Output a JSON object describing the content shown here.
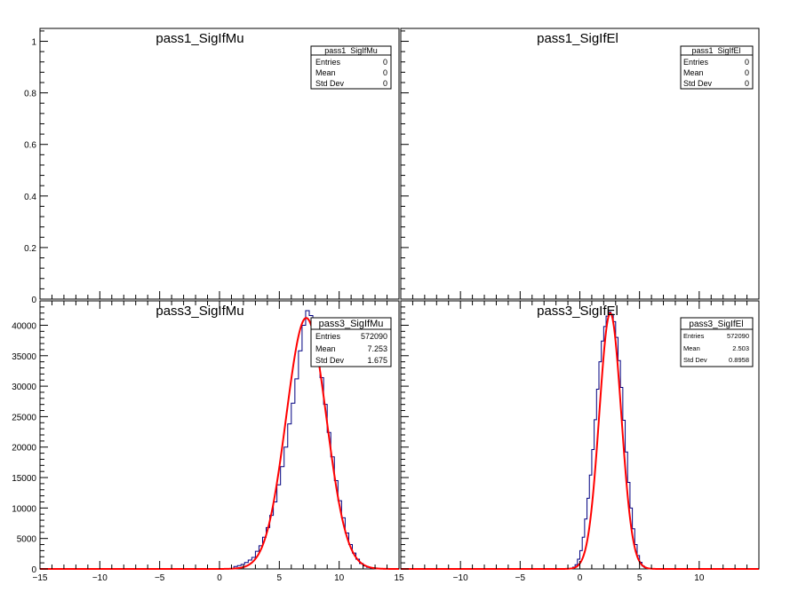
{
  "chart_data": [
    {
      "type": "bar",
      "title": "pass1_SigIfMu",
      "xlim": [
        -15,
        15
      ],
      "ylim": [
        0,
        1.05
      ],
      "y_ticks": [
        0,
        0.2,
        0.4,
        0.6,
        0.8,
        1
      ],
      "y_tick_labels": [
        "0",
        "0.2",
        "0.4",
        "0.6",
        "0.8",
        "1"
      ],
      "x_tick_labels": [],
      "bins": [],
      "fit": null,
      "stats": {
        "name": "pass1_SigIfMu",
        "rows": [
          {
            "label": "Entries",
            "value": "0"
          },
          {
            "label": "Mean",
            "value": "0"
          },
          {
            "label": "Std Dev",
            "value": "0"
          }
        ]
      },
      "colors": {
        "hist": "#000080",
        "fit": "#ff0000"
      }
    },
    {
      "type": "bar",
      "title": "pass1_SigIfEl",
      "xlim": [
        -15,
        15
      ],
      "ylim": [
        0,
        1.05
      ],
      "y_ticks": [],
      "y_tick_labels": [],
      "x_tick_labels": [],
      "bins": [],
      "fit": null,
      "stats": {
        "name": "pass1_SigIfEl",
        "rows": [
          {
            "label": "Entries",
            "value": "0"
          },
          {
            "label": "Mean",
            "value": "0"
          },
          {
            "label": "Std Dev",
            "value": "0"
          }
        ]
      },
      "colors": {
        "hist": "#000080",
        "fit": "#ff0000"
      }
    },
    {
      "type": "bar",
      "title": "pass3_SigIfMu",
      "xlim": [
        -15,
        15
      ],
      "ylim": [
        0,
        44000
      ],
      "y_ticks": [
        0,
        5000,
        10000,
        15000,
        20000,
        25000,
        30000,
        35000,
        40000
      ],
      "y_tick_labels": [
        "0",
        "5000",
        "10000",
        "15000",
        "20000",
        "25000",
        "30000",
        "35000",
        "40000"
      ],
      "x_ticks": [
        -15,
        -10,
        -5,
        0,
        5,
        10,
        15
      ],
      "x_tick_labels": [
        "−15",
        "−10",
        "−5",
        "0",
        "5",
        "10",
        "15"
      ],
      "bin_width": 0.3,
      "bins": [
        {
          "x": 1.35,
          "y": 400
        },
        {
          "x": 1.65,
          "y": 550
        },
        {
          "x": 1.95,
          "y": 750
        },
        {
          "x": 2.25,
          "y": 1050
        },
        {
          "x": 2.55,
          "y": 1450
        },
        {
          "x": 2.85,
          "y": 1900
        },
        {
          "x": 3.15,
          "y": 2900
        },
        {
          "x": 3.45,
          "y": 3800
        },
        {
          "x": 3.75,
          "y": 5200
        },
        {
          "x": 4.05,
          "y": 6800
        },
        {
          "x": 4.35,
          "y": 8800
        },
        {
          "x": 4.65,
          "y": 11000
        },
        {
          "x": 4.95,
          "y": 13800
        },
        {
          "x": 5.25,
          "y": 16800
        },
        {
          "x": 5.55,
          "y": 20000
        },
        {
          "x": 5.85,
          "y": 23800
        },
        {
          "x": 6.15,
          "y": 27200
        },
        {
          "x": 6.45,
          "y": 31200
        },
        {
          "x": 6.75,
          "y": 35800
        },
        {
          "x": 7.05,
          "y": 40000
        },
        {
          "x": 7.35,
          "y": 42400
        },
        {
          "x": 7.65,
          "y": 41600
        },
        {
          "x": 7.95,
          "y": 38200
        },
        {
          "x": 8.25,
          "y": 35200
        },
        {
          "x": 8.55,
          "y": 31400
        },
        {
          "x": 8.85,
          "y": 27000
        },
        {
          "x": 9.15,
          "y": 22400
        },
        {
          "x": 9.45,
          "y": 18400
        },
        {
          "x": 9.75,
          "y": 14500
        },
        {
          "x": 10.05,
          "y": 11200
        },
        {
          "x": 10.35,
          "y": 8400
        },
        {
          "x": 10.65,
          "y": 5900
        },
        {
          "x": 10.95,
          "y": 4000
        },
        {
          "x": 11.25,
          "y": 2600
        },
        {
          "x": 11.55,
          "y": 1600
        },
        {
          "x": 11.85,
          "y": 900
        },
        {
          "x": 12.15,
          "y": 500
        },
        {
          "x": 12.45,
          "y": 250
        }
      ],
      "fit": {
        "type": "gaussian",
        "amplitude": 41200,
        "mean": 7.25,
        "sigma": 1.675,
        "range": [
          -15,
          15
        ]
      },
      "stats": {
        "name": "pass3_SigIfMu",
        "rows": [
          {
            "label": "Entries",
            "value": "572090"
          },
          {
            "label": "Mean",
            "value": "7.253"
          },
          {
            "label": "Std Dev",
            "value": "1.675"
          }
        ]
      },
      "colors": {
        "hist": "#000080",
        "fit": "#ff0000"
      }
    },
    {
      "type": "bar",
      "title": "pass3_SigIfEl",
      "xlim": [
        -15,
        15
      ],
      "ylim": [
        0,
        44000
      ],
      "y_ticks": [],
      "y_tick_labels": [],
      "x_ticks": [
        -10,
        -5,
        0,
        5,
        10
      ],
      "x_tick_labels": [
        "−10",
        "−5",
        "0",
        "5",
        "10"
      ],
      "bin_width": 0.2,
      "bins": [
        {
          "x": -0.5,
          "y": 300
        },
        {
          "x": -0.3,
          "y": 700
        },
        {
          "x": -0.1,
          "y": 1600
        },
        {
          "x": 0.1,
          "y": 3000
        },
        {
          "x": 0.3,
          "y": 5200
        },
        {
          "x": 0.5,
          "y": 8200
        },
        {
          "x": 0.7,
          "y": 11600
        },
        {
          "x": 0.9,
          "y": 15400
        },
        {
          "x": 1.1,
          "y": 19600
        },
        {
          "x": 1.3,
          "y": 24500
        },
        {
          "x": 1.5,
          "y": 29500
        },
        {
          "x": 1.7,
          "y": 34000
        },
        {
          "x": 1.9,
          "y": 37400
        },
        {
          "x": 2.1,
          "y": 39800
        },
        {
          "x": 2.3,
          "y": 41500
        },
        {
          "x": 2.5,
          "y": 42200
        },
        {
          "x": 2.7,
          "y": 41800
        },
        {
          "x": 2.9,
          "y": 40600
        },
        {
          "x": 3.1,
          "y": 38000
        },
        {
          "x": 3.3,
          "y": 34200
        },
        {
          "x": 3.5,
          "y": 29800
        },
        {
          "x": 3.7,
          "y": 24400
        },
        {
          "x": 3.9,
          "y": 19200
        },
        {
          "x": 4.1,
          "y": 14200
        },
        {
          "x": 4.3,
          "y": 10000
        },
        {
          "x": 4.5,
          "y": 6600
        },
        {
          "x": 4.7,
          "y": 4000
        },
        {
          "x": 4.9,
          "y": 2200
        },
        {
          "x": 5.1,
          "y": 1100
        },
        {
          "x": 5.3,
          "y": 500
        },
        {
          "x": 5.5,
          "y": 200
        }
      ],
      "fit": {
        "type": "gaussian",
        "amplitude": 42000,
        "mean": 2.55,
        "sigma": 0.92,
        "range": [
          -15,
          15
        ]
      },
      "stats": {
        "name": "pass3_SigIfEl",
        "rows": [
          {
            "label": "Entries",
            "value": "572090"
          },
          {
            "label": "Mean",
            "value": "2.503"
          },
          {
            "label": "Std Dev",
            "value": "0.8958"
          }
        ]
      },
      "colors": {
        "hist": "#000080",
        "fit": "#ff0000"
      }
    }
  ]
}
